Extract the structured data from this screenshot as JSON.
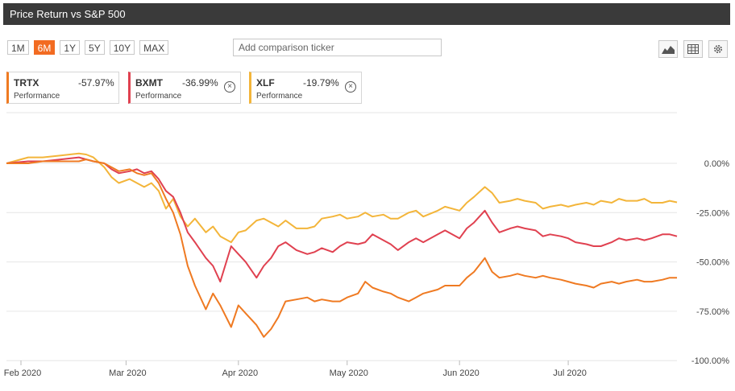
{
  "header": {
    "title": "Price Return vs S&P 500"
  },
  "ranges": {
    "items": [
      "1M",
      "6M",
      "1Y",
      "5Y",
      "10Y",
      "MAX"
    ],
    "active": "6M"
  },
  "comparison": {
    "placeholder": "Add comparison ticker"
  },
  "toolbar": {
    "icons": [
      "area-chart-icon",
      "table-icon",
      "gear-icon"
    ]
  },
  "legend": [
    {
      "ticker": "TRTX",
      "pct": "-57.97%",
      "sub": "Performance",
      "color": "#ef7a22",
      "removable": false
    },
    {
      "ticker": "BXMT",
      "pct": "-36.99%",
      "sub": "Performance",
      "color": "#e04150",
      "removable": true
    },
    {
      "ticker": "XLF",
      "pct": "-19.79%",
      "sub": "Performance",
      "color": "#f3b53a",
      "removable": true
    }
  ],
  "chart_data": {
    "type": "line",
    "x_axis": {
      "range": [
        "2020-01-28",
        "2020-07-31"
      ],
      "ticks": [
        {
          "label": "Feb 2020",
          "date": "2020-02-01"
        },
        {
          "label": "Mar 2020",
          "date": "2020-03-01"
        },
        {
          "label": "Apr 2020",
          "date": "2020-04-01"
        },
        {
          "label": "May 2020",
          "date": "2020-05-01"
        },
        {
          "label": "Jun 2020",
          "date": "2020-06-01"
        },
        {
          "label": "Jul 2020",
          "date": "2020-07-01"
        }
      ]
    },
    "y_axis": {
      "range": [
        -100,
        5
      ],
      "ticks": [
        {
          "label": "0.00%",
          "value": 0
        },
        {
          "label": "-25.00%",
          "value": -25
        },
        {
          "label": "-50.00%",
          "value": -50
        },
        {
          "label": "-75.00%",
          "value": -75
        },
        {
          "label": "-100.00%",
          "value": -100
        }
      ],
      "position": "right",
      "grid": true
    },
    "series": [
      {
        "name": "XLF",
        "color": "#f3b53a",
        "points": [
          [
            "2020-01-28",
            0
          ],
          [
            "2020-02-03",
            3
          ],
          [
            "2020-02-07",
            3
          ],
          [
            "2020-02-12",
            4
          ],
          [
            "2020-02-17",
            5
          ],
          [
            "2020-02-19",
            4.5
          ],
          [
            "2020-02-21",
            3
          ],
          [
            "2020-02-24",
            -2
          ],
          [
            "2020-02-26",
            -7
          ],
          [
            "2020-02-28",
            -10
          ],
          [
            "2020-03-02",
            -8
          ],
          [
            "2020-03-04",
            -10
          ],
          [
            "2020-03-06",
            -12
          ],
          [
            "2020-03-08",
            -10
          ],
          [
            "2020-03-10",
            -14
          ],
          [
            "2020-03-12",
            -23
          ],
          [
            "2020-03-14",
            -18
          ],
          [
            "2020-03-16",
            -27
          ],
          [
            "2020-03-18",
            -32
          ],
          [
            "2020-03-20",
            -28
          ],
          [
            "2020-03-23",
            -35
          ],
          [
            "2020-03-25",
            -32
          ],
          [
            "2020-03-27",
            -37
          ],
          [
            "2020-03-30",
            -40
          ],
          [
            "2020-04-01",
            -35
          ],
          [
            "2020-04-03",
            -34
          ],
          [
            "2020-04-06",
            -29
          ],
          [
            "2020-04-08",
            -28
          ],
          [
            "2020-04-10",
            -30
          ],
          [
            "2020-04-12",
            -32
          ],
          [
            "2020-04-14",
            -29
          ],
          [
            "2020-04-17",
            -33
          ],
          [
            "2020-04-20",
            -33
          ],
          [
            "2020-04-22",
            -32
          ],
          [
            "2020-04-24",
            -28
          ],
          [
            "2020-04-27",
            -27
          ],
          [
            "2020-04-29",
            -26
          ],
          [
            "2020-05-01",
            -28
          ],
          [
            "2020-05-04",
            -27
          ],
          [
            "2020-05-06",
            -25
          ],
          [
            "2020-05-08",
            -27
          ],
          [
            "2020-05-11",
            -26
          ],
          [
            "2020-05-13",
            -28
          ],
          [
            "2020-05-15",
            -28
          ],
          [
            "2020-05-18",
            -25
          ],
          [
            "2020-05-20",
            -24
          ],
          [
            "2020-05-22",
            -27
          ],
          [
            "2020-05-26",
            -24
          ],
          [
            "2020-05-28",
            -22
          ],
          [
            "2020-06-01",
            -24
          ],
          [
            "2020-06-03",
            -20
          ],
          [
            "2020-06-05",
            -17
          ],
          [
            "2020-06-08",
            -12
          ],
          [
            "2020-06-10",
            -15
          ],
          [
            "2020-06-12",
            -20
          ],
          [
            "2020-06-15",
            -19
          ],
          [
            "2020-06-17",
            -18
          ],
          [
            "2020-06-19",
            -19
          ],
          [
            "2020-06-22",
            -20
          ],
          [
            "2020-06-24",
            -23
          ],
          [
            "2020-06-26",
            -22
          ],
          [
            "2020-06-29",
            -21
          ],
          [
            "2020-07-01",
            -22
          ],
          [
            "2020-07-03",
            -21
          ],
          [
            "2020-07-06",
            -20
          ],
          [
            "2020-07-08",
            -21
          ],
          [
            "2020-07-10",
            -19
          ],
          [
            "2020-07-13",
            -20
          ],
          [
            "2020-07-15",
            -18
          ],
          [
            "2020-07-17",
            -19
          ],
          [
            "2020-07-20",
            -19
          ],
          [
            "2020-07-22",
            -18
          ],
          [
            "2020-07-24",
            -20
          ],
          [
            "2020-07-27",
            -20
          ],
          [
            "2020-07-29",
            -19
          ],
          [
            "2020-07-31",
            -19.8
          ]
        ]
      },
      {
        "name": "BXMT",
        "color": "#e04150",
        "points": [
          [
            "2020-01-28",
            0
          ],
          [
            "2020-02-03",
            1
          ],
          [
            "2020-02-07",
            1
          ],
          [
            "2020-02-12",
            2
          ],
          [
            "2020-02-17",
            3
          ],
          [
            "2020-02-19",
            2
          ],
          [
            "2020-02-21",
            1
          ],
          [
            "2020-02-24",
            0
          ],
          [
            "2020-02-26",
            -3
          ],
          [
            "2020-02-28",
            -5
          ],
          [
            "2020-03-02",
            -4
          ],
          [
            "2020-03-04",
            -3
          ],
          [
            "2020-03-06",
            -5
          ],
          [
            "2020-03-08",
            -4
          ],
          [
            "2020-03-10",
            -8
          ],
          [
            "2020-03-12",
            -14
          ],
          [
            "2020-03-14",
            -17
          ],
          [
            "2020-03-16",
            -25
          ],
          [
            "2020-03-18",
            -35
          ],
          [
            "2020-03-20",
            -40
          ],
          [
            "2020-03-23",
            -48
          ],
          [
            "2020-03-25",
            -52
          ],
          [
            "2020-03-27",
            -60
          ],
          [
            "2020-03-30",
            -42
          ],
          [
            "2020-04-01",
            -46
          ],
          [
            "2020-04-03",
            -50
          ],
          [
            "2020-04-06",
            -58
          ],
          [
            "2020-04-08",
            -52
          ],
          [
            "2020-04-10",
            -48
          ],
          [
            "2020-04-12",
            -42
          ],
          [
            "2020-04-14",
            -40
          ],
          [
            "2020-04-17",
            -44
          ],
          [
            "2020-04-20",
            -46
          ],
          [
            "2020-04-22",
            -45
          ],
          [
            "2020-04-24",
            -43
          ],
          [
            "2020-04-27",
            -45
          ],
          [
            "2020-04-29",
            -42
          ],
          [
            "2020-05-01",
            -40
          ],
          [
            "2020-05-04",
            -41
          ],
          [
            "2020-05-06",
            -40
          ],
          [
            "2020-05-08",
            -36
          ],
          [
            "2020-05-11",
            -39
          ],
          [
            "2020-05-13",
            -41
          ],
          [
            "2020-05-15",
            -44
          ],
          [
            "2020-05-18",
            -40
          ],
          [
            "2020-05-20",
            -38
          ],
          [
            "2020-05-22",
            -40
          ],
          [
            "2020-05-26",
            -36
          ],
          [
            "2020-05-28",
            -34
          ],
          [
            "2020-06-01",
            -38
          ],
          [
            "2020-06-03",
            -33
          ],
          [
            "2020-06-05",
            -30
          ],
          [
            "2020-06-08",
            -24
          ],
          [
            "2020-06-10",
            -30
          ],
          [
            "2020-06-12",
            -35
          ],
          [
            "2020-06-15",
            -33
          ],
          [
            "2020-06-17",
            -32
          ],
          [
            "2020-06-19",
            -33
          ],
          [
            "2020-06-22",
            -34
          ],
          [
            "2020-06-24",
            -37
          ],
          [
            "2020-06-26",
            -36
          ],
          [
            "2020-06-29",
            -37
          ],
          [
            "2020-07-01",
            -38
          ],
          [
            "2020-07-03",
            -40
          ],
          [
            "2020-07-06",
            -41
          ],
          [
            "2020-07-08",
            -42
          ],
          [
            "2020-07-10",
            -42
          ],
          [
            "2020-07-13",
            -40
          ],
          [
            "2020-07-15",
            -38
          ],
          [
            "2020-07-17",
            -39
          ],
          [
            "2020-07-20",
            -38
          ],
          [
            "2020-07-22",
            -39
          ],
          [
            "2020-07-24",
            -38
          ],
          [
            "2020-07-27",
            -36
          ],
          [
            "2020-07-29",
            -36
          ],
          [
            "2020-07-31",
            -37
          ]
        ]
      },
      {
        "name": "TRTX",
        "color": "#ef7a22",
        "points": [
          [
            "2020-01-28",
            0
          ],
          [
            "2020-02-03",
            0
          ],
          [
            "2020-02-07",
            1
          ],
          [
            "2020-02-12",
            1
          ],
          [
            "2020-02-17",
            1
          ],
          [
            "2020-02-19",
            2
          ],
          [
            "2020-02-21",
            1
          ],
          [
            "2020-02-24",
            0
          ],
          [
            "2020-02-26",
            -2
          ],
          [
            "2020-02-28",
            -4
          ],
          [
            "2020-03-02",
            -3
          ],
          [
            "2020-03-04",
            -5
          ],
          [
            "2020-03-06",
            -6
          ],
          [
            "2020-03-08",
            -5
          ],
          [
            "2020-03-10",
            -10
          ],
          [
            "2020-03-12",
            -18
          ],
          [
            "2020-03-14",
            -25
          ],
          [
            "2020-03-16",
            -36
          ],
          [
            "2020-03-18",
            -52
          ],
          [
            "2020-03-20",
            -62
          ],
          [
            "2020-03-23",
            -74
          ],
          [
            "2020-03-25",
            -66
          ],
          [
            "2020-03-27",
            -72
          ],
          [
            "2020-03-30",
            -83
          ],
          [
            "2020-04-01",
            -72
          ],
          [
            "2020-04-03",
            -76
          ],
          [
            "2020-04-06",
            -82
          ],
          [
            "2020-04-08",
            -88
          ],
          [
            "2020-04-10",
            -84
          ],
          [
            "2020-04-12",
            -78
          ],
          [
            "2020-04-14",
            -70
          ],
          [
            "2020-04-17",
            -69
          ],
          [
            "2020-04-20",
            -68
          ],
          [
            "2020-04-22",
            -70
          ],
          [
            "2020-04-24",
            -69
          ],
          [
            "2020-04-27",
            -70
          ],
          [
            "2020-04-29",
            -70
          ],
          [
            "2020-05-01",
            -68
          ],
          [
            "2020-05-04",
            -66
          ],
          [
            "2020-05-06",
            -60
          ],
          [
            "2020-05-08",
            -63
          ],
          [
            "2020-05-11",
            -65
          ],
          [
            "2020-05-13",
            -66
          ],
          [
            "2020-05-15",
            -68
          ],
          [
            "2020-05-18",
            -70
          ],
          [
            "2020-05-20",
            -68
          ],
          [
            "2020-05-22",
            -66
          ],
          [
            "2020-05-26",
            -64
          ],
          [
            "2020-05-28",
            -62
          ],
          [
            "2020-06-01",
            -62
          ],
          [
            "2020-06-03",
            -58
          ],
          [
            "2020-06-05",
            -55
          ],
          [
            "2020-06-08",
            -48
          ],
          [
            "2020-06-10",
            -55
          ],
          [
            "2020-06-12",
            -58
          ],
          [
            "2020-06-15",
            -57
          ],
          [
            "2020-06-17",
            -56
          ],
          [
            "2020-06-19",
            -57
          ],
          [
            "2020-06-22",
            -58
          ],
          [
            "2020-06-24",
            -57
          ],
          [
            "2020-06-26",
            -58
          ],
          [
            "2020-06-29",
            -59
          ],
          [
            "2020-07-01",
            -60
          ],
          [
            "2020-07-03",
            -61
          ],
          [
            "2020-07-06",
            -62
          ],
          [
            "2020-07-08",
            -63
          ],
          [
            "2020-07-10",
            -61
          ],
          [
            "2020-07-13",
            -60
          ],
          [
            "2020-07-15",
            -61
          ],
          [
            "2020-07-17",
            -60
          ],
          [
            "2020-07-20",
            -59
          ],
          [
            "2020-07-22",
            -60
          ],
          [
            "2020-07-24",
            -60
          ],
          [
            "2020-07-27",
            -59
          ],
          [
            "2020-07-29",
            -58
          ],
          [
            "2020-07-31",
            -58
          ]
        ]
      }
    ]
  }
}
